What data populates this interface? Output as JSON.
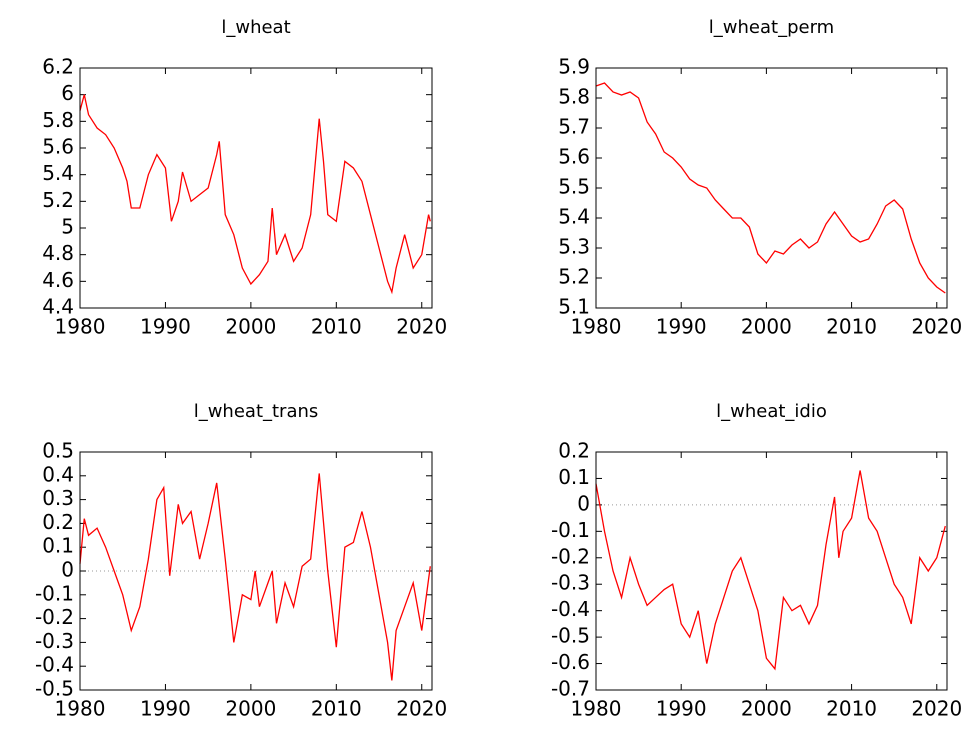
{
  "chart_data": [
    {
      "type": "line",
      "title": "l_wheat",
      "color": "#ff0000",
      "zero_line": false,
      "xlim": [
        1980,
        2021.2
      ],
      "xticks": [
        1980,
        1990,
        2000,
        2010,
        2020
      ],
      "ylim": [
        4.4,
        6.2
      ],
      "yticks": [
        4.4,
        4.6,
        4.8,
        5,
        5.2,
        5.4,
        5.6,
        5.8,
        6,
        6.2
      ],
      "x": [
        1980,
        1980.5,
        1981,
        1982,
        1983,
        1984,
        1985,
        1985.5,
        1986,
        1987,
        1988,
        1989,
        1990,
        1990.7,
        1991.5,
        1992,
        1993,
        1994,
        1995,
        1996,
        1996.3,
        1997,
        1998,
        1999,
        2000,
        2001,
        2002,
        2002.5,
        2003,
        2004,
        2005,
        2006,
        2007,
        2008,
        2008.5,
        2009,
        2010,
        2011,
        2012,
        2013,
        2014,
        2015,
        2016,
        2016.5,
        2017,
        2018,
        2019,
        2020,
        2020.8,
        2021
      ],
      "values": [
        5.88,
        6.0,
        5.85,
        5.75,
        5.7,
        5.6,
        5.45,
        5.35,
        5.15,
        5.15,
        5.4,
        5.55,
        5.45,
        5.05,
        5.2,
        5.42,
        5.2,
        5.25,
        5.3,
        5.55,
        5.65,
        5.1,
        4.95,
        4.7,
        4.58,
        4.65,
        4.75,
        5.15,
        4.8,
        4.95,
        4.75,
        4.85,
        5.1,
        5.82,
        5.5,
        5.1,
        5.05,
        5.5,
        5.45,
        5.35,
        5.1,
        4.85,
        4.6,
        4.52,
        4.7,
        4.95,
        4.7,
        4.8,
        5.1,
        5.05
      ]
    },
    {
      "type": "line",
      "title": "l_wheat_perm",
      "color": "#ff0000",
      "zero_line": false,
      "xlim": [
        1980,
        2021.2
      ],
      "xticks": [
        1980,
        1990,
        2000,
        2010,
        2020
      ],
      "ylim": [
        5.1,
        5.9
      ],
      "yticks": [
        5.1,
        5.2,
        5.3,
        5.4,
        5.5,
        5.6,
        5.7,
        5.8,
        5.9
      ],
      "x": [
        1980,
        1981,
        1982,
        1983,
        1984,
        1985,
        1986,
        1987,
        1988,
        1989,
        1990,
        1991,
        1992,
        1993,
        1994,
        1995,
        1996,
        1997,
        1998,
        1999,
        2000,
        2001,
        2002,
        2003,
        2004,
        2005,
        2006,
        2007,
        2008,
        2009,
        2010,
        2011,
        2012,
        2013,
        2014,
        2015,
        2016,
        2017,
        2018,
        2019,
        2020,
        2021
      ],
      "values": [
        5.84,
        5.85,
        5.82,
        5.81,
        5.82,
        5.8,
        5.72,
        5.68,
        5.62,
        5.6,
        5.57,
        5.53,
        5.51,
        5.5,
        5.46,
        5.43,
        5.4,
        5.4,
        5.37,
        5.28,
        5.25,
        5.29,
        5.28,
        5.31,
        5.33,
        5.3,
        5.32,
        5.38,
        5.42,
        5.38,
        5.34,
        5.32,
        5.33,
        5.38,
        5.44,
        5.46,
        5.43,
        5.33,
        5.25,
        5.2,
        5.17,
        5.15
      ]
    },
    {
      "type": "line",
      "title": "l_wheat_trans",
      "color": "#ff0000",
      "zero_line": true,
      "xlim": [
        1980,
        2021.2
      ],
      "xticks": [
        1980,
        1990,
        2000,
        2010,
        2020
      ],
      "ylim": [
        -0.5,
        0.5
      ],
      "yticks": [
        -0.5,
        -0.4,
        -0.3,
        -0.2,
        -0.1,
        0,
        0.1,
        0.2,
        0.3,
        0.4,
        0.5
      ],
      "x": [
        1980,
        1980.5,
        1981,
        1982,
        1983,
        1984,
        1985,
        1986,
        1987,
        1988,
        1989,
        1989.8,
        1990.5,
        1991.5,
        1992,
        1993,
        1994,
        1995,
        1996,
        1997,
        1998,
        1999,
        2000,
        2000.5,
        2001,
        2002,
        2002.5,
        2003,
        2004,
        2005,
        2006,
        2007,
        2008,
        2009,
        2010,
        2011,
        2012,
        2013,
        2014,
        2015,
        2016,
        2016.5,
        2017,
        2018,
        2019,
        2020,
        2021
      ],
      "values": [
        0.03,
        0.22,
        0.15,
        0.18,
        0.1,
        0.0,
        -0.1,
        -0.25,
        -0.15,
        0.05,
        0.3,
        0.35,
        -0.02,
        0.28,
        0.2,
        0.25,
        0.05,
        0.2,
        0.37,
        0.05,
        -0.3,
        -0.1,
        -0.12,
        0.0,
        -0.15,
        -0.05,
        0.0,
        -0.22,
        -0.05,
        -0.15,
        0.02,
        0.05,
        0.41,
        0.0,
        -0.32,
        0.1,
        0.12,
        0.25,
        0.1,
        -0.1,
        -0.3,
        -0.46,
        -0.25,
        -0.15,
        -0.05,
        -0.25,
        0.02
      ]
    },
    {
      "type": "line",
      "title": "l_wheat_idio",
      "color": "#ff0000",
      "zero_line": true,
      "xlim": [
        1980,
        2021.2
      ],
      "xticks": [
        1980,
        1990,
        2000,
        2010,
        2020
      ],
      "ylim": [
        -0.7,
        0.2
      ],
      "yticks": [
        -0.7,
        -0.6,
        -0.5,
        -0.4,
        -0.3,
        -0.2,
        -0.1,
        0,
        0.1,
        0.2
      ],
      "x": [
        1980,
        1981,
        1982,
        1983,
        1984,
        1985,
        1986,
        1987,
        1988,
        1989,
        1990,
        1991,
        1992,
        1993,
        1994,
        1995,
        1996,
        1997,
        1998,
        1999,
        2000,
        2001,
        2002,
        2003,
        2004,
        2005,
        2006,
        2007,
        2008,
        2008.5,
        2009,
        2010,
        2011,
        2012,
        2013,
        2014,
        2015,
        2016,
        2017,
        2018,
        2019,
        2020,
        2021
      ],
      "values": [
        0.08,
        -0.1,
        -0.25,
        -0.35,
        -0.2,
        -0.3,
        -0.38,
        -0.35,
        -0.32,
        -0.3,
        -0.45,
        -0.5,
        -0.4,
        -0.6,
        -0.45,
        -0.35,
        -0.25,
        -0.2,
        -0.3,
        -0.4,
        -0.58,
        -0.62,
        -0.35,
        -0.4,
        -0.38,
        -0.45,
        -0.38,
        -0.15,
        0.03,
        -0.2,
        -0.1,
        -0.05,
        0.13,
        -0.05,
        -0.1,
        -0.2,
        -0.3,
        -0.35,
        -0.45,
        -0.2,
        -0.25,
        -0.2,
        -0.08
      ]
    }
  ]
}
